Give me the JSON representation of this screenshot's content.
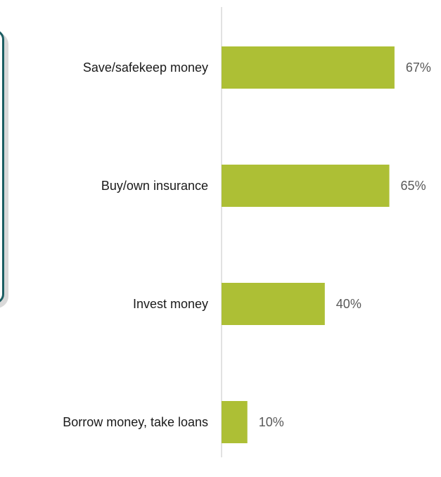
{
  "chart_data": {
    "type": "bar",
    "orientation": "horizontal",
    "categories": [
      "Save/safekeep money",
      "Buy/own insurance",
      "Invest money",
      "Borrow money, take loans"
    ],
    "values": [
      67,
      65,
      40,
      10
    ],
    "value_labels": [
      "67%",
      "65%",
      "40%",
      "10%"
    ],
    "unit": "%",
    "title": "",
    "xlabel": "",
    "ylabel": "",
    "xlim": [
      0,
      100
    ],
    "grid": false,
    "legend": "none",
    "colors": {
      "bar": "#adbf35",
      "axis": "#d9d9d9",
      "category_text": "#1a1a1a",
      "value_text": "#595959",
      "side_panel_border": "#1c5e63"
    }
  }
}
